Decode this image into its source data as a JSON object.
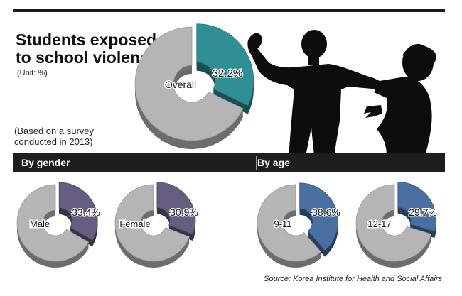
{
  "title_line1": "Students exposed",
  "title_line2": "to school violence",
  "unit": "(Unit: %)",
  "survey_line1": "(Based on a survey",
  "survey_line2": "conducted in 2013)",
  "gender_header": "By gender",
  "age_header": "By age",
  "source": "Source: Korea Institute for Health and Social Affairs",
  "colors": {
    "overall": "#2f8f95",
    "gender": "#665d80",
    "age": "#4a6fa3",
    "ring": "#b5b5b5"
  },
  "chart_data": [
    {
      "type": "pie",
      "title": "Students exposed to school violence",
      "categories": [
        "Overall"
      ],
      "values": [
        32.2
      ],
      "value_labels": [
        "32.2%"
      ],
      "unit": "%"
    },
    {
      "type": "pie",
      "title": "By gender",
      "categories": [
        "Male",
        "Female"
      ],
      "values": [
        33.4,
        30.9
      ],
      "value_labels": [
        "33.4%",
        "30.9%"
      ],
      "unit": "%"
    },
    {
      "type": "pie",
      "title": "By age",
      "categories": [
        "9-11",
        "12-17"
      ],
      "values": [
        38.6,
        29.7
      ],
      "value_labels": [
        "38.6%",
        "29.7%"
      ],
      "unit": "%"
    }
  ]
}
